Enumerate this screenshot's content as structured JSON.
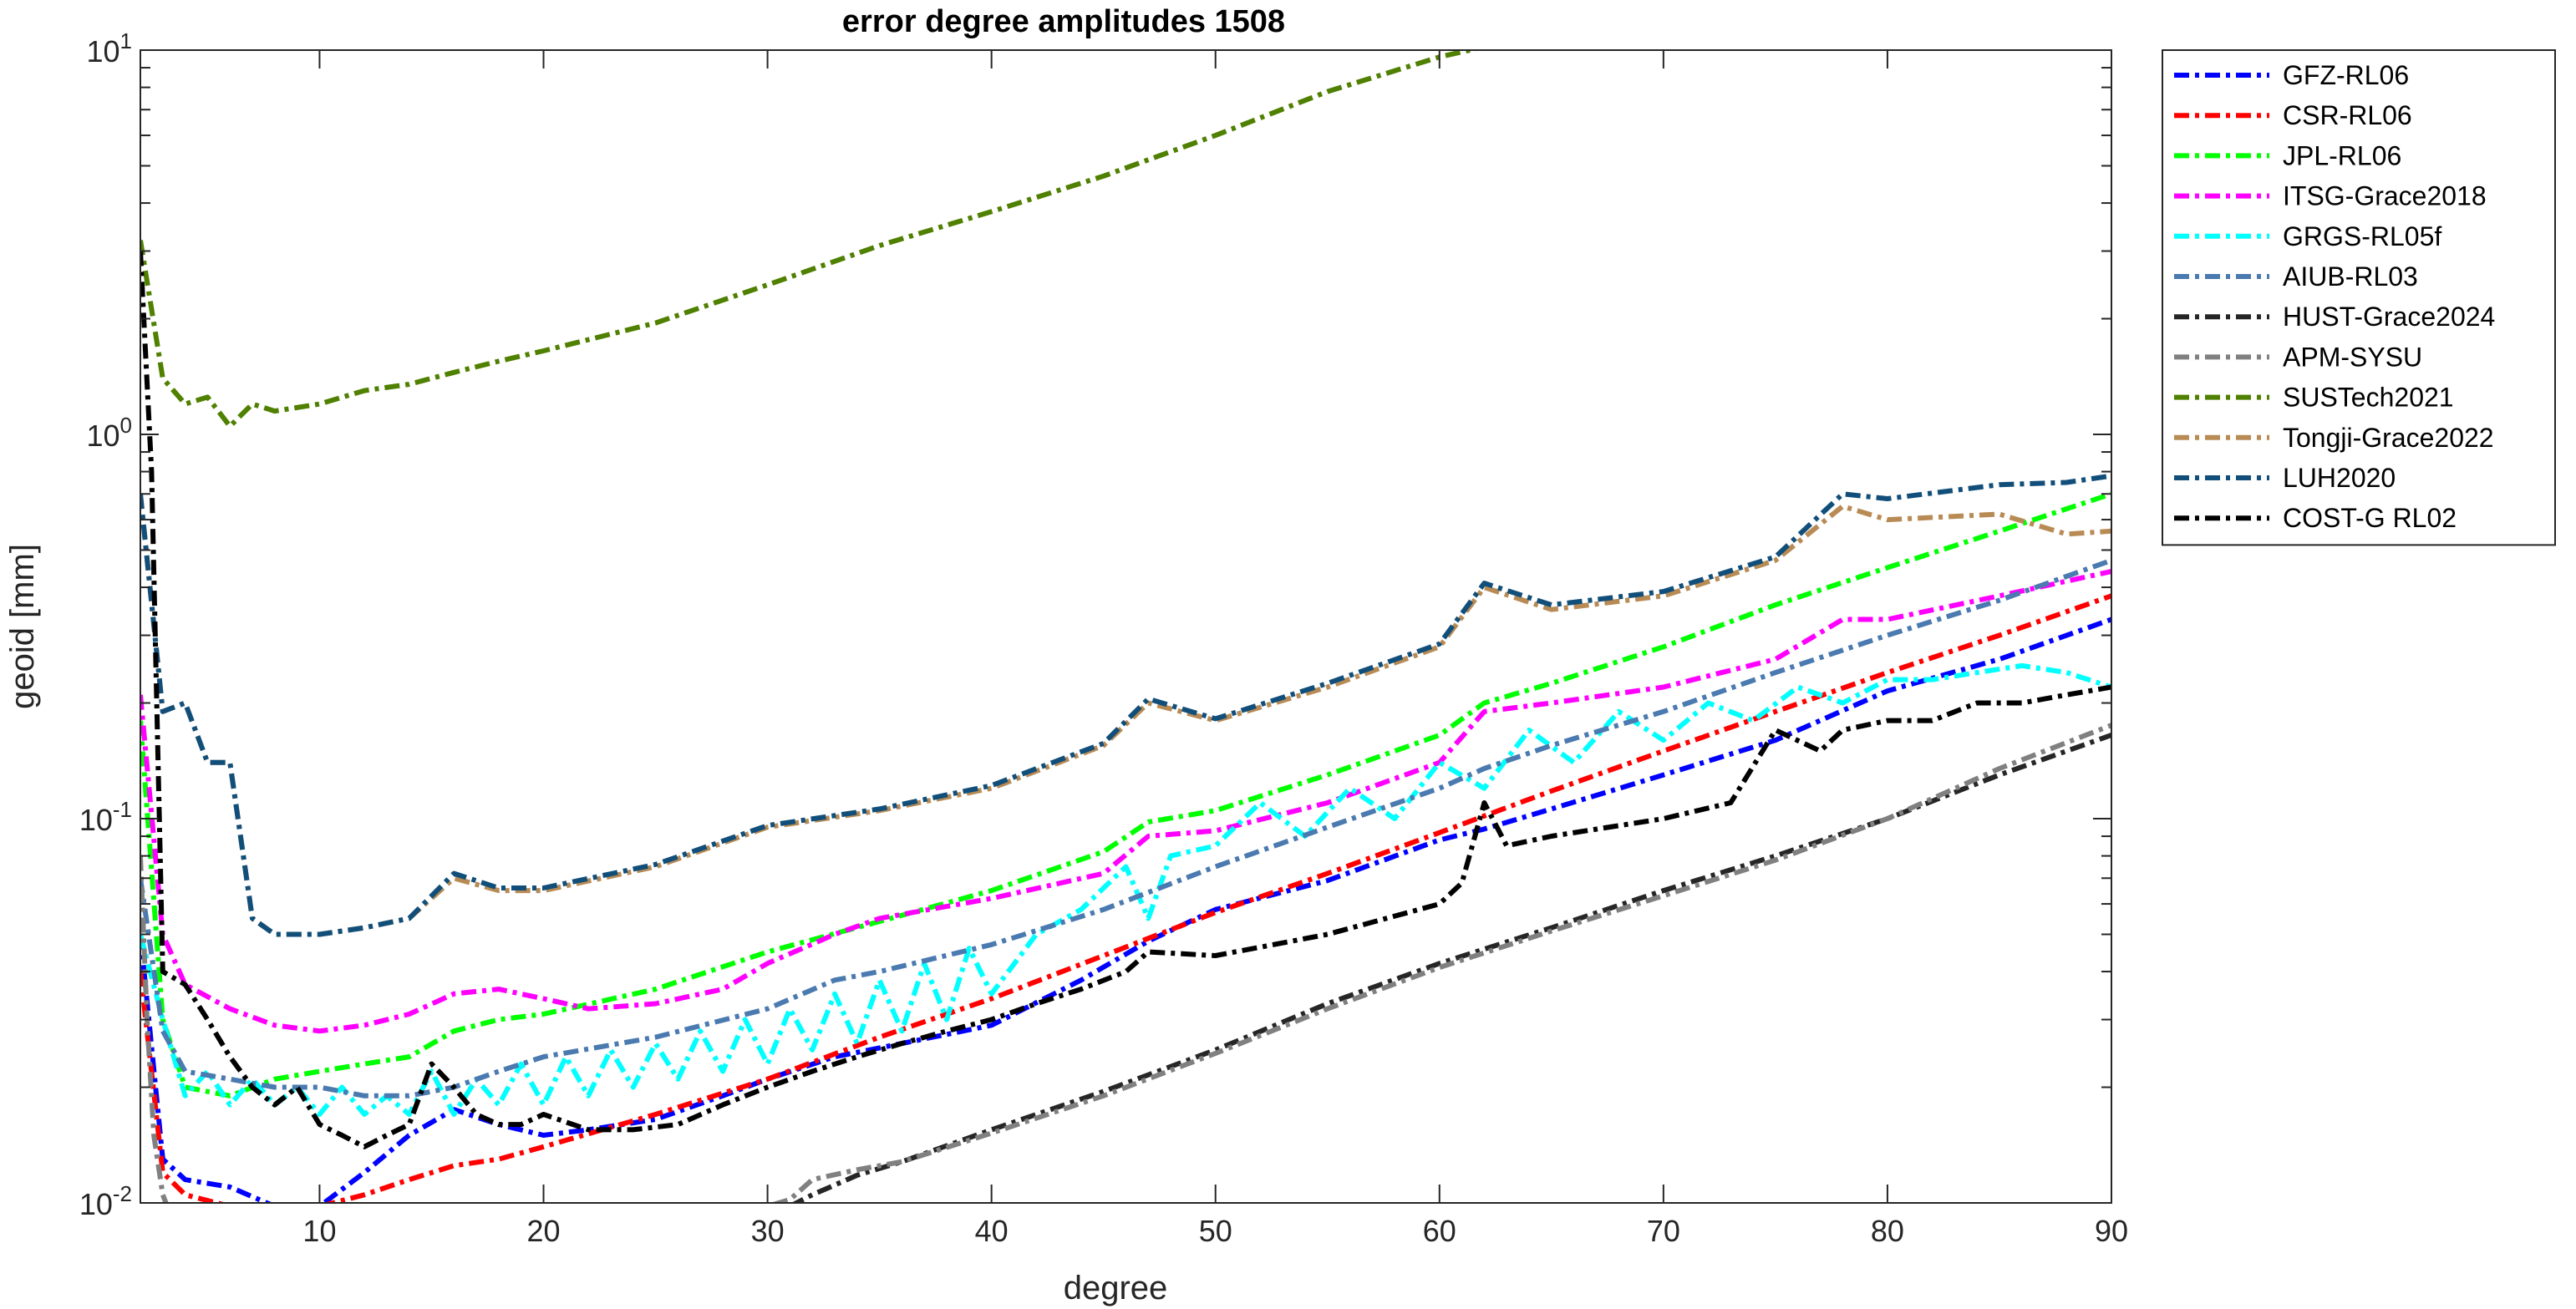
{
  "chart_data": {
    "type": "line",
    "title": "error degree amplitudes 1508",
    "xlabel": "degree",
    "ylabel": "geoid [mm]",
    "xlim": [
      2,
      90
    ],
    "ylim": [
      0.01,
      10
    ],
    "yscale": "log",
    "x_ticks": [
      10,
      20,
      30,
      40,
      50,
      60,
      70,
      80,
      90
    ],
    "y_ticks": [
      {
        "base": "10",
        "exp": "-2",
        "value": 0.01
      },
      {
        "base": "10",
        "exp": "-1",
        "value": 0.1
      },
      {
        "base": "10",
        "exp": "0",
        "value": 1
      },
      {
        "base": "10",
        "exp": "1",
        "value": 10
      }
    ],
    "grid": false,
    "legend_position": "outside-right",
    "series": [
      {
        "name": "GFZ-RL06",
        "color": "#0000ff",
        "x": [
          2,
          3,
          4,
          6,
          8,
          10,
          12,
          14,
          16,
          18,
          20,
          22,
          25,
          28,
          30,
          33,
          36,
          40,
          44,
          47,
          50,
          55,
          60,
          62,
          65,
          70,
          75,
          80,
          85,
          90
        ],
        "y": [
          0.05,
          0.013,
          0.0115,
          0.011,
          0.0098,
          0.0098,
          0.012,
          0.015,
          0.0175,
          0.016,
          0.015,
          0.0155,
          0.0165,
          0.019,
          0.021,
          0.024,
          0.026,
          0.029,
          0.038,
          0.048,
          0.058,
          0.069,
          0.088,
          0.094,
          0.106,
          0.13,
          0.16,
          0.215,
          0.26,
          0.33
        ]
      },
      {
        "name": "CSR-RL06",
        "color": "#ff0000",
        "x": [
          2,
          3,
          4,
          6,
          8,
          10,
          12,
          14,
          16,
          18,
          20,
          25,
          30,
          35,
          40,
          45,
          50,
          55,
          60,
          65,
          70,
          75,
          80,
          85,
          90
        ],
        "y": [
          0.04,
          0.012,
          0.0105,
          0.0098,
          0.0096,
          0.0098,
          0.0105,
          0.0115,
          0.0125,
          0.013,
          0.014,
          0.017,
          0.021,
          0.027,
          0.034,
          0.044,
          0.057,
          0.072,
          0.092,
          0.118,
          0.15,
          0.19,
          0.24,
          0.3,
          0.38
        ]
      },
      {
        "name": "JPL-RL06",
        "color": "#00ff00",
        "x": [
          2,
          3,
          4,
          6,
          8,
          10,
          12,
          14,
          16,
          18,
          20,
          25,
          30,
          35,
          40,
          45,
          47,
          50,
          55,
          60,
          62,
          65,
          70,
          75,
          80,
          85,
          90
        ],
        "y": [
          0.18,
          0.03,
          0.02,
          0.019,
          0.021,
          0.022,
          0.023,
          0.024,
          0.028,
          0.03,
          0.031,
          0.036,
          0.045,
          0.054,
          0.065,
          0.082,
          0.098,
          0.105,
          0.13,
          0.165,
          0.2,
          0.225,
          0.28,
          0.36,
          0.45,
          0.56,
          0.7
        ]
      },
      {
        "name": "ITSG-Grace2018",
        "color": "#ff00ff",
        "x": [
          2,
          3,
          4,
          6,
          8,
          10,
          12,
          14,
          16,
          18,
          20,
          22,
          25,
          28,
          30,
          33,
          35,
          40,
          45,
          47,
          50,
          55,
          60,
          62,
          65,
          70,
          75,
          78,
          80,
          85,
          90
        ],
        "y": [
          0.21,
          0.05,
          0.037,
          0.032,
          0.029,
          0.028,
          0.029,
          0.031,
          0.035,
          0.036,
          0.034,
          0.032,
          0.033,
          0.036,
          0.042,
          0.05,
          0.055,
          0.062,
          0.072,
          0.09,
          0.093,
          0.11,
          0.14,
          0.19,
          0.2,
          0.22,
          0.26,
          0.33,
          0.33,
          0.38,
          0.44
        ]
      },
      {
        "name": "GRGS-RL05f",
        "color": "#00ffff",
        "x": [
          2,
          3,
          4,
          5,
          6,
          7,
          8,
          9,
          10,
          11,
          12,
          13,
          14,
          15,
          16,
          17,
          18,
          19,
          20,
          21,
          22,
          23,
          24,
          25,
          26,
          27,
          28,
          29,
          30,
          31,
          32,
          33,
          34,
          35,
          36,
          37,
          38,
          39,
          40,
          42,
          44,
          46,
          47,
          48,
          50,
          52,
          54,
          56,
          58,
          60,
          62,
          64,
          66,
          68,
          70,
          72,
          74,
          76,
          78,
          80,
          82,
          84,
          86,
          88,
          90
        ],
        "y": [
          0.05,
          0.03,
          0.019,
          0.022,
          0.018,
          0.021,
          0.018,
          0.02,
          0.017,
          0.02,
          0.017,
          0.019,
          0.017,
          0.022,
          0.017,
          0.021,
          0.018,
          0.023,
          0.018,
          0.024,
          0.019,
          0.025,
          0.02,
          0.026,
          0.021,
          0.028,
          0.022,
          0.03,
          0.023,
          0.032,
          0.025,
          0.035,
          0.026,
          0.038,
          0.028,
          0.042,
          0.03,
          0.046,
          0.035,
          0.05,
          0.058,
          0.075,
          0.055,
          0.08,
          0.085,
          0.11,
          0.09,
          0.12,
          0.1,
          0.14,
          0.12,
          0.17,
          0.14,
          0.19,
          0.16,
          0.2,
          0.18,
          0.22,
          0.2,
          0.23,
          0.23,
          0.24,
          0.25,
          0.24,
          0.22
        ]
      },
      {
        "name": "AIUB-RL03",
        "color": "#4a7ab0",
        "x": [
          2,
          3,
          4,
          6,
          8,
          10,
          12,
          14,
          16,
          18,
          20,
          25,
          30,
          33,
          35,
          40,
          45,
          50,
          55,
          60,
          62,
          65,
          70,
          75,
          80,
          85,
          90
        ],
        "y": [
          0.07,
          0.028,
          0.022,
          0.021,
          0.02,
          0.02,
          0.019,
          0.019,
          0.02,
          0.022,
          0.024,
          0.027,
          0.032,
          0.038,
          0.04,
          0.047,
          0.058,
          0.075,
          0.095,
          0.12,
          0.135,
          0.155,
          0.19,
          0.24,
          0.3,
          0.37,
          0.47
        ]
      },
      {
        "name": "HUST-Grace2024",
        "color": "#262626",
        "x": [
          31,
          32,
          34,
          36,
          40,
          45,
          50,
          55,
          60,
          65,
          70,
          75,
          80,
          85,
          90
        ],
        "y": [
          0.0098,
          0.0105,
          0.0118,
          0.0128,
          0.0155,
          0.0195,
          0.025,
          0.033,
          0.042,
          0.052,
          0.065,
          0.08,
          0.1,
          0.13,
          0.165
        ]
      },
      {
        "name": "APM-SYSU",
        "color": "#808080",
        "x": [
          2,
          2.3,
          2.6,
          3,
          3.2,
          30,
          31,
          32,
          34,
          36,
          40,
          45,
          50,
          55,
          60,
          65,
          70,
          75,
          80,
          85,
          90
        ],
        "y": [
          0.08,
          0.03,
          0.015,
          0.0105,
          0.0098,
          0.0098,
          0.0102,
          0.0115,
          0.0122,
          0.0128,
          0.0152,
          0.019,
          0.0245,
          0.032,
          0.041,
          0.051,
          0.063,
          0.078,
          0.1,
          0.135,
          0.175
        ]
      },
      {
        "name": "SUSTech2021",
        "color": "#4f8000",
        "x": [
          2,
          3,
          4,
          5,
          6,
          7,
          8,
          10,
          12,
          14,
          16,
          18,
          20,
          25,
          30,
          35,
          40,
          45,
          50,
          55,
          60,
          62
        ],
        "y": [
          3.2,
          1.4,
          1.2,
          1.25,
          1.05,
          1.2,
          1.15,
          1.2,
          1.3,
          1.35,
          1.45,
          1.55,
          1.65,
          1.95,
          2.45,
          3.1,
          3.8,
          4.7,
          6.0,
          7.8,
          9.6,
          10.2
        ]
      },
      {
        "name": "Tongji-Grace2022",
        "color": "#b88b55",
        "x": [
          2,
          3,
          4,
          5,
          6,
          7,
          8,
          10,
          12,
          14,
          16,
          18,
          20,
          25,
          30,
          35,
          40,
          45,
          47,
          50,
          55,
          60,
          62,
          65,
          70,
          75,
          78,
          80,
          85,
          88,
          90
        ],
        "y": [
          0.7,
          0.19,
          0.2,
          0.14,
          0.14,
          0.055,
          0.05,
          0.05,
          0.052,
          0.055,
          0.07,
          0.065,
          0.065,
          0.075,
          0.095,
          0.105,
          0.12,
          0.155,
          0.2,
          0.18,
          0.22,
          0.28,
          0.4,
          0.35,
          0.38,
          0.47,
          0.65,
          0.6,
          0.62,
          0.55,
          0.56
        ]
      },
      {
        "name": "LUH2020",
        "color": "#114f7a",
        "x": [
          2,
          3,
          4,
          5,
          6,
          7,
          8,
          10,
          12,
          14,
          16,
          18,
          20,
          25,
          30,
          35,
          40,
          45,
          47,
          50,
          55,
          60,
          62,
          65,
          70,
          75,
          78,
          80,
          85,
          88,
          90
        ],
        "y": [
          0.7,
          0.19,
          0.2,
          0.14,
          0.14,
          0.055,
          0.05,
          0.05,
          0.052,
          0.055,
          0.072,
          0.066,
          0.066,
          0.076,
          0.096,
          0.106,
          0.122,
          0.157,
          0.205,
          0.182,
          0.225,
          0.285,
          0.41,
          0.36,
          0.39,
          0.48,
          0.7,
          0.68,
          0.74,
          0.75,
          0.78
        ]
      },
      {
        "name": "COST-G RL02",
        "color": "#000000",
        "x": [
          2,
          2.5,
          3,
          4,
          5,
          6,
          7,
          8,
          9,
          10,
          11,
          12,
          13,
          14,
          15,
          16,
          17,
          18,
          19,
          20,
          22,
          24,
          26,
          28,
          30,
          32,
          34,
          36,
          38,
          40,
          42,
          44,
          46,
          47,
          50,
          55,
          60,
          61,
          62,
          63,
          65,
          70,
          73,
          75,
          77,
          78,
          80,
          82,
          84,
          86,
          88,
          90
        ],
        "y": [
          3.0,
          0.8,
          0.04,
          0.037,
          0.03,
          0.024,
          0.02,
          0.018,
          0.02,
          0.016,
          0.015,
          0.014,
          0.015,
          0.016,
          0.023,
          0.02,
          0.017,
          0.016,
          0.016,
          0.017,
          0.0155,
          0.0155,
          0.016,
          0.018,
          0.02,
          0.022,
          0.024,
          0.026,
          0.028,
          0.03,
          0.033,
          0.036,
          0.04,
          0.045,
          0.044,
          0.05,
          0.06,
          0.068,
          0.11,
          0.085,
          0.09,
          0.1,
          0.11,
          0.17,
          0.15,
          0.17,
          0.18,
          0.18,
          0.2,
          0.2,
          0.21,
          0.22
        ]
      }
    ]
  }
}
